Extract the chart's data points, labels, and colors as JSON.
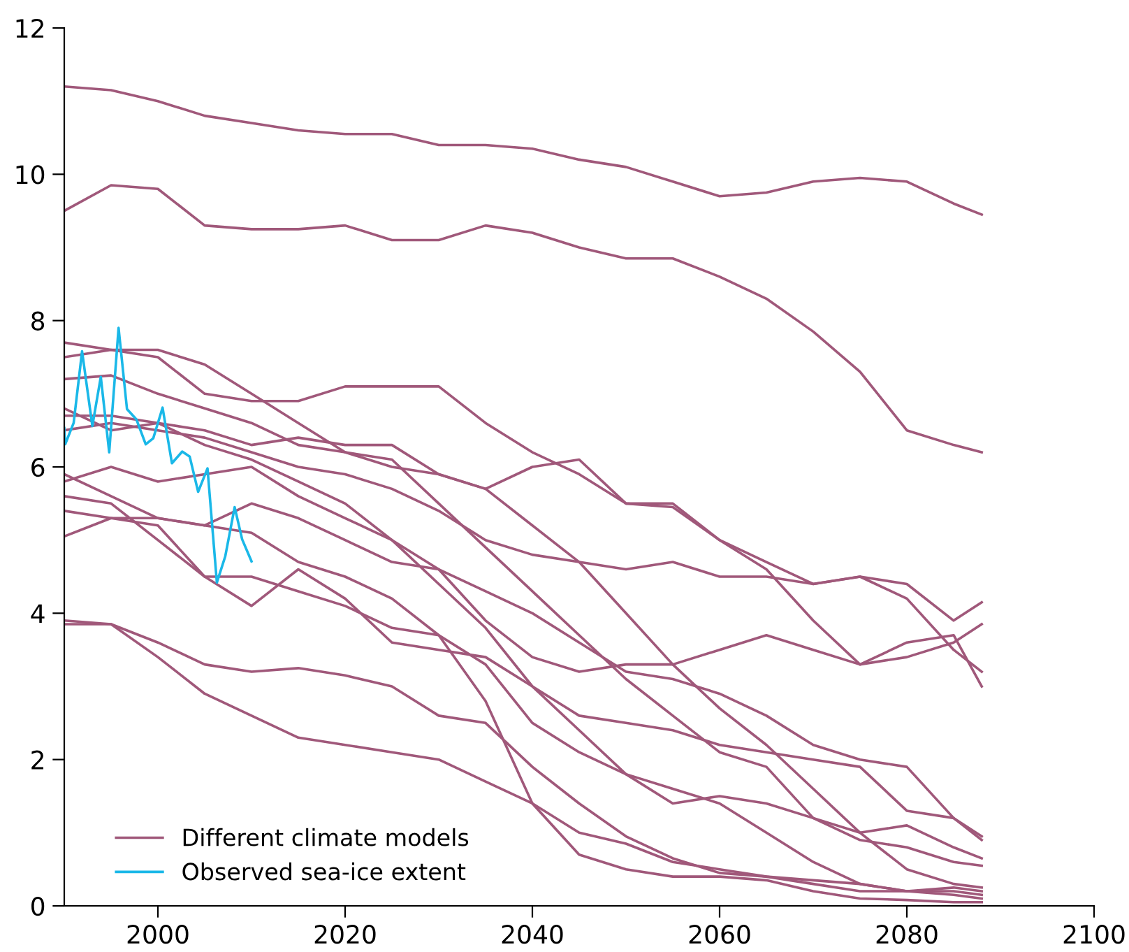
{
  "chart_data": {
    "type": "line",
    "xlim": [
      1990,
      2100
    ],
    "xticks": [
      2000,
      2020,
      2040,
      2060,
      2080,
      2100
    ],
    "ylim": [
      0,
      12
    ],
    "yticks": [
      0,
      2,
      4,
      6,
      8,
      10,
      12
    ],
    "legend": "bottom left",
    "grid": false,
    "line_style": "solid",
    "marker": "none",
    "x": [
      1990,
      1995,
      2000,
      2005,
      2010,
      2015,
      2020,
      2025,
      2030,
      2035,
      2040,
      2045,
      2050,
      2055,
      2060,
      2065,
      2070,
      2075,
      2080,
      2085,
      2088
    ],
    "series": [
      {
        "name": "Different climate models",
        "color": "#a0587a",
        "values": [
          11.2,
          11.15,
          11.0,
          10.8,
          10.7,
          10.6,
          10.55,
          10.55,
          10.4,
          10.4,
          10.35,
          10.2,
          10.1,
          9.9,
          9.7,
          9.75,
          9.9,
          9.95,
          9.9,
          9.6,
          9.45
        ]
      },
      {
        "color": "#a0587a",
        "values": [
          9.5,
          9.85,
          9.8,
          9.3,
          9.25,
          9.25,
          9.3,
          9.1,
          9.1,
          9.3,
          9.2,
          9.0,
          8.85,
          8.85,
          8.6,
          8.3,
          7.85,
          7.3,
          6.5,
          6.3,
          6.2
        ]
      },
      {
        "color": "#a0587a",
        "values": [
          7.5,
          7.6,
          7.5,
          7.0,
          6.9,
          6.9,
          7.1,
          7.1,
          7.1,
          6.6,
          6.2,
          5.9,
          5.5,
          5.45,
          5.0,
          4.7,
          4.4,
          4.5,
          4.4,
          3.9,
          4.15
        ]
      },
      {
        "color": "#a0587a",
        "values": [
          7.7,
          7.6,
          7.6,
          7.4,
          7.0,
          6.6,
          6.2,
          6.0,
          5.9,
          5.7,
          5.2,
          4.7,
          4.0,
          3.3,
          2.7,
          2.2,
          1.6,
          1.0,
          0.5,
          0.3,
          0.25
        ]
      },
      {
        "color": "#a0587a",
        "values": [
          7.2,
          7.25,
          7.0,
          6.8,
          6.6,
          6.3,
          6.2,
          6.1,
          5.5,
          4.9,
          4.3,
          3.7,
          3.1,
          2.6,
          2.1,
          1.9,
          1.2,
          1.0,
          1.1,
          0.8,
          0.65
        ]
      },
      {
        "color": "#a0587a",
        "values": [
          6.8,
          6.5,
          6.6,
          6.5,
          6.3,
          6.4,
          6.3,
          6.3,
          5.9,
          5.7,
          6.0,
          6.1,
          5.5,
          5.5,
          5.0,
          4.6,
          3.9,
          3.3,
          3.6,
          3.7,
          3.0
        ]
      },
      {
        "color": "#a0587a",
        "values": [
          6.5,
          6.6,
          6.5,
          6.4,
          6.2,
          6.0,
          5.9,
          5.7,
          5.4,
          5.0,
          4.8,
          4.7,
          4.6,
          4.7,
          4.5,
          4.5,
          4.4,
          4.5,
          4.2,
          3.5,
          3.2
        ]
      },
      {
        "color": "#a0587a",
        "values": [
          6.7,
          6.7,
          6.6,
          6.3,
          6.1,
          5.8,
          5.5,
          5.0,
          4.6,
          3.9,
          3.4,
          3.2,
          3.3,
          3.3,
          3.5,
          3.7,
          3.5,
          3.3,
          3.4,
          3.6,
          3.85
        ]
      },
      {
        "color": "#a0587a",
        "values": [
          5.9,
          5.6,
          5.3,
          5.2,
          5.5,
          5.3,
          5.0,
          4.7,
          4.6,
          4.3,
          4.0,
          3.6,
          3.2,
          3.1,
          2.9,
          2.6,
          2.2,
          2.0,
          1.9,
          1.2,
          0.95
        ]
      },
      {
        "color": "#a0587a",
        "values": [
          5.8,
          6.0,
          5.8,
          5.9,
          6.0,
          5.6,
          5.3,
          5.0,
          4.4,
          3.8,
          3.0,
          2.4,
          1.8,
          1.4,
          1.5,
          1.4,
          1.2,
          0.9,
          0.8,
          0.6,
          0.55
        ]
      },
      {
        "color": "#a0587a",
        "values": [
          5.4,
          5.3,
          5.3,
          5.2,
          5.1,
          4.7,
          4.5,
          4.2,
          3.7,
          3.3,
          2.5,
          2.1,
          1.8,
          1.6,
          1.4,
          1.0,
          0.6,
          0.3,
          0.2,
          0.2,
          0.15
        ]
      },
      {
        "color": "#a0587a",
        "values": [
          5.05,
          5.3,
          5.2,
          4.5,
          4.1,
          4.6,
          4.2,
          3.6,
          3.5,
          3.4,
          3.0,
          2.6,
          2.5,
          2.4,
          2.2,
          2.1,
          2.0,
          1.9,
          1.3,
          1.2,
          0.9
        ]
      },
      {
        "color": "#a0587a",
        "values": [
          5.6,
          5.5,
          5.0,
          4.5,
          4.5,
          4.3,
          4.1,
          3.8,
          3.7,
          2.8,
          1.4,
          0.7,
          0.5,
          0.4,
          0.4,
          0.35,
          0.2,
          0.1,
          0.08,
          0.05,
          0.05
        ]
      },
      {
        "color": "#a0587a",
        "values": [
          3.9,
          3.85,
          3.6,
          3.3,
          3.2,
          3.25,
          3.15,
          3.0,
          2.6,
          2.5,
          1.9,
          1.4,
          0.95,
          0.65,
          0.45,
          0.4,
          0.3,
          0.2,
          0.2,
          0.15,
          0.1
        ]
      },
      {
        "color": "#a0587a",
        "values": [
          3.85,
          3.85,
          3.4,
          2.9,
          2.6,
          2.3,
          2.2,
          2.1,
          2.0,
          1.7,
          1.4,
          1.0,
          0.85,
          0.6,
          0.5,
          0.4,
          0.35,
          0.3,
          0.2,
          0.25,
          0.2
        ]
      },
      {
        "name": "Observed sea-ice extent",
        "color": "#1ab8e8",
        "x": [
          1990,
          1990.1,
          1991.0,
          1991.9,
          1993.0,
          1993.9,
          1994.8,
          1995.8,
          1996.7,
          1997.7,
          1998.7,
          1999.5,
          2000.5,
          2001.5,
          2002.6,
          2003.4,
          2004.3,
          2005.3,
          2006.3,
          2007.2,
          2008.2,
          2009.0,
          2010.0
        ],
        "values": [
          6.53,
          6.31,
          6.6,
          7.58,
          6.56,
          7.23,
          6.2,
          7.9,
          6.79,
          6.65,
          6.31,
          6.39,
          6.81,
          6.05,
          6.21,
          6.14,
          5.66,
          5.98,
          4.42,
          4.78,
          5.45,
          5.01,
          4.71
        ]
      }
    ]
  }
}
